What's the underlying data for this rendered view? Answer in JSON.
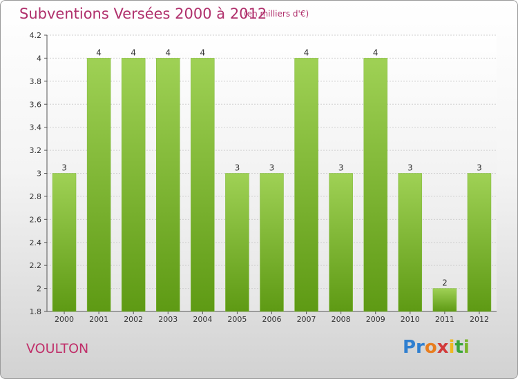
{
  "chart_data": {
    "type": "bar",
    "title": "Subventions Versées 2000 à 2012",
    "subtitle": "(en milliers d'€)",
    "categories": [
      "2000",
      "2001",
      "2002",
      "2003",
      "2004",
      "2005",
      "2006",
      "2007",
      "2008",
      "2009",
      "2010",
      "2011",
      "2012"
    ],
    "values": [
      3,
      4,
      4,
      4,
      4,
      3,
      3,
      4,
      3,
      4,
      3,
      2,
      3
    ],
    "data_labels": [
      "3",
      "4",
      "4",
      "4",
      "4",
      "3",
      "3",
      "4",
      "3",
      "4",
      "3",
      "2",
      "3"
    ],
    "y_ticks": [
      "1.8",
      "2",
      "2.2",
      "2.4",
      "2.6",
      "2.8",
      "3",
      "3.2",
      "3.4",
      "3.6",
      "3.8",
      "4",
      "4.2"
    ],
    "ylim": [
      1.8,
      4.2
    ],
    "grid": true,
    "bar_color": "#7ab52a"
  },
  "footer": {
    "commune": "VOULTON",
    "logo": [
      "Pr",
      "o",
      "x",
      "i",
      "t",
      "i"
    ]
  }
}
